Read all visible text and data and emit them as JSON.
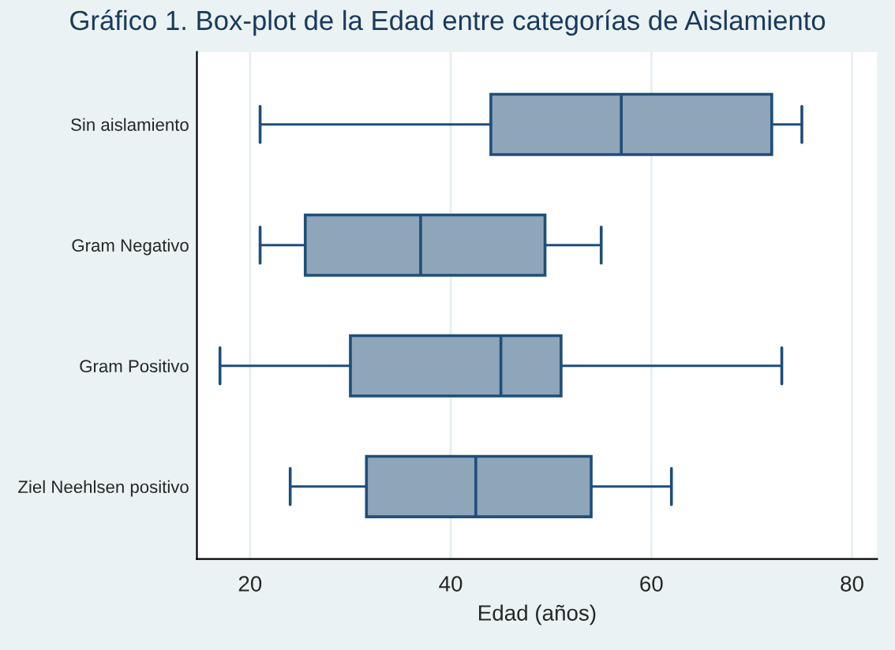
{
  "chart_data": {
    "type": "box",
    "orientation": "horizontal",
    "title": "Gráfico 1. Box-plot de la Edad entre categorías de Aislamiento",
    "xlabel": "Edad (años)",
    "categories": [
      "Sin aislamiento",
      "Gram Negativo",
      "Gram Positivo",
      "Ziel Neehlsen positivo"
    ],
    "boxes": [
      {
        "low": 21,
        "q1": 44,
        "median": 57,
        "q3": 72,
        "high": 75
      },
      {
        "low": 21,
        "q1": 25.5,
        "median": 37,
        "q3": 49.4,
        "high": 55
      },
      {
        "low": 17,
        "q1": 30,
        "median": 45,
        "q3": 51,
        "high": 73
      },
      {
        "low": 24,
        "q1": 31.6,
        "median": 42.5,
        "q3": 54,
        "high": 62
      }
    ],
    "color": "#8ea5ba",
    "xlim": [
      14.7,
      82.5
    ],
    "xticks": [
      20,
      40,
      60,
      80
    ],
    "grid": "x",
    "legend": false
  }
}
